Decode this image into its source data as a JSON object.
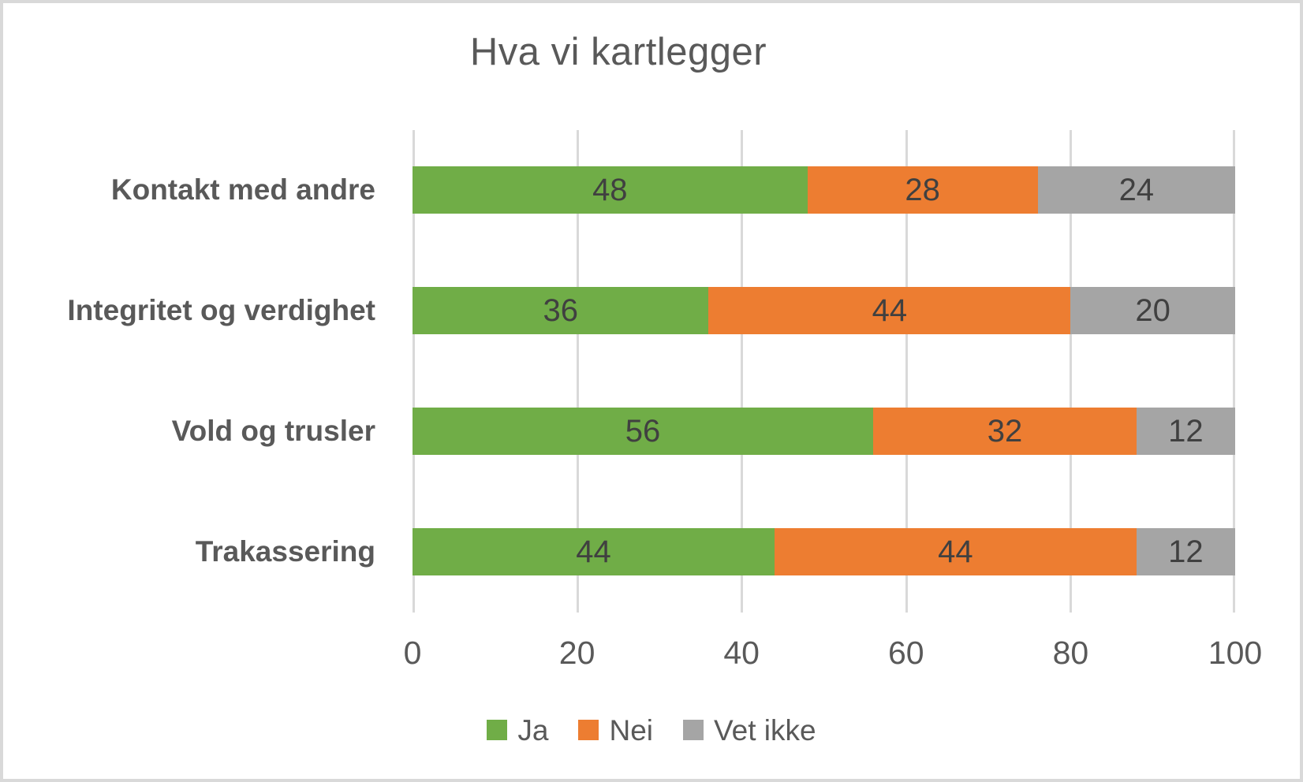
{
  "window": {
    "background": "#ffffff",
    "border_color": "#d9d9d9"
  },
  "chart_data": {
    "type": "bar",
    "orientation": "horizontal",
    "stacked": true,
    "title": "Hva vi kartlegger",
    "categories": [
      "Kontakt med andre",
      "Integritet og verdighet",
      "Vold og trusler",
      "Trakassering"
    ],
    "series": [
      {
        "name": "Ja",
        "color": "#70ad47",
        "values": [
          48,
          36,
          56,
          44
        ]
      },
      {
        "name": "Nei",
        "color": "#ed7d31",
        "values": [
          28,
          44,
          32,
          44
        ]
      },
      {
        "name": "Vet ikke",
        "color": "#a5a5a5",
        "values": [
          24,
          20,
          12,
          12
        ]
      }
    ],
    "xlabel": "",
    "ylabel": "",
    "xlim": [
      0,
      100
    ],
    "xticks": [
      "0",
      "20",
      "40",
      "60",
      "80",
      "100"
    ],
    "grid": "vertical",
    "legend_position": "bottom",
    "colors": {
      "title_text": "#595959",
      "category_text": "#595959",
      "data_label_text": "#404040",
      "tick_text": "#595959",
      "gridline": "#d9d9d9"
    }
  }
}
